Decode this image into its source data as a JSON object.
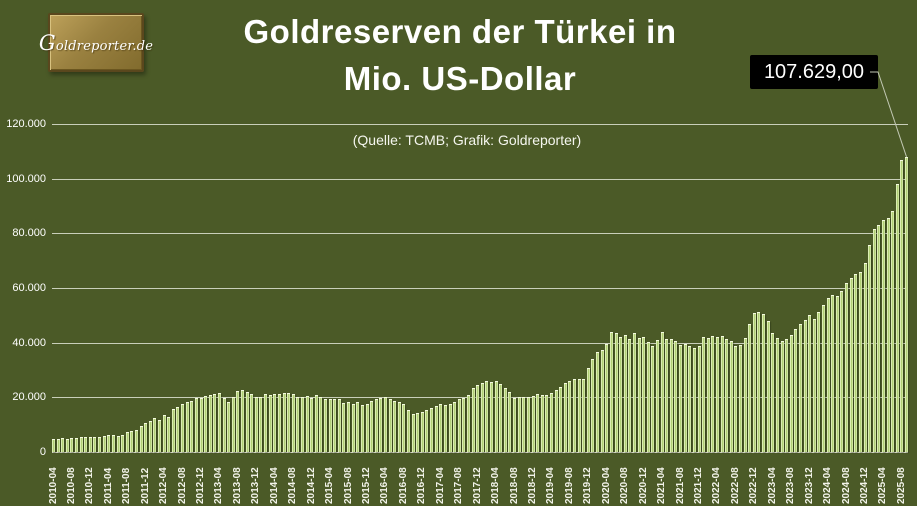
{
  "window": {
    "background": "#4b5a27"
  },
  "logo": {
    "text": "Goldreporter.de"
  },
  "title": {
    "line1": "Goldreserven der Türkei in",
    "line2": "Mio. US-Dollar"
  },
  "subtitle": "(Quelle: TCMB; Grafik: Goldreporter)",
  "callout": {
    "value_label": "107.629,00"
  },
  "colors": {
    "background": "#4b5a27",
    "bar_fill": "#c6df92",
    "bar_edge": "#eff7d2",
    "gridline": "#c9cfba",
    "text": "#ffffff",
    "callout_bg": "#000000",
    "logo_gold": "#9a8140",
    "leader_line": "#c2c8b3"
  },
  "chart_data": {
    "type": "bar",
    "title": "Goldreserven der Türkei in Mio. US-Dollar",
    "source_note": "(Quelle: TCMB; Grafik: Goldreporter)",
    "unit": "Mio. US-Dollar",
    "ylim": [
      0,
      120000
    ],
    "grid": true,
    "y_ticks": [
      {
        "value": 120000,
        "label": "120.000"
      },
      {
        "value": 100000,
        "label": "100.000"
      },
      {
        "value": 80000,
        "label": "80.000"
      },
      {
        "value": 60000,
        "label": "60.000"
      },
      {
        "value": 40000,
        "label": "40.000"
      },
      {
        "value": 20000,
        "label": "20.000"
      },
      {
        "value": 0,
        "label": "0"
      }
    ],
    "x_start_month": "2010-04",
    "x_tick_every_n_bars": 4,
    "x_tick_labels": [
      "2010-04",
      "2010-08",
      "2010-12",
      "2011-04",
      "2011-08",
      "2011-12",
      "2012-04",
      "2012-08",
      "2012-12",
      "2013-04",
      "2013-08",
      "2013-12",
      "2014-04",
      "2014-08",
      "2014-12",
      "2015-04",
      "2015-08",
      "2015-12",
      "2016-04",
      "2016-08",
      "2016-12",
      "2017-04",
      "2017-08",
      "2017-12",
      "2018-04",
      "2018-08",
      "2018-12",
      "2019-04",
      "2019-08",
      "2019-12",
      "2020-04",
      "2020-08",
      "2020-12",
      "2021-04",
      "2021-08",
      "2021-12",
      "2022-04",
      "2022-08",
      "2022-12",
      "2023-04",
      "2023-08",
      "2023-12",
      "2024-04",
      "2024-08",
      "2024-12",
      "2025-04",
      "2025-08"
    ],
    "values": [
      4300,
      4500,
      4600,
      4400,
      4600,
      4900,
      5000,
      5100,
      5300,
      5000,
      5200,
      5400,
      5700,
      5700,
      5600,
      6000,
      6900,
      7200,
      7800,
      9200,
      10100,
      11100,
      12200,
      11300,
      13000,
      12600,
      15400,
      16200,
      17100,
      17800,
      18300,
      19300,
      19500,
      20300,
      20500,
      20800,
      21100,
      19500,
      17800,
      19900,
      22000,
      22300,
      21500,
      20900,
      19900,
      19900,
      20900,
      20600,
      20800,
      20900,
      21100,
      21200,
      20700,
      19600,
      19900,
      20000,
      19300,
      20400,
      19600,
      19000,
      19200,
      19100,
      18900,
      17700,
      17900,
      17300,
      17900,
      16800,
      17200,
      18400,
      19200,
      19500,
      19800,
      18900,
      18400,
      17900,
      17300,
      14900,
      13600,
      13900,
      14400,
      14900,
      15800,
      16400,
      17100,
      16900,
      17300,
      17900,
      18900,
      19500,
      20500,
      23200,
      24000,
      25000,
      25500,
      25300,
      25600,
      24400,
      23000,
      21700,
      19300,
      19900,
      19600,
      19700,
      20200,
      20900,
      20400,
      20400,
      21300,
      22200,
      23500,
      24700,
      25500,
      26500,
      26200,
      26500,
      30400,
      33800,
      36400,
      36800,
      39200,
      43500,
      43300,
      41700,
      42300,
      41000,
      43000,
      41500,
      41700,
      39900,
      38300,
      40700,
      43700,
      41100,
      40800,
      40200,
      38900,
      39300,
      38300,
      37700,
      38300,
      41700,
      41300,
      42000,
      41700,
      42000,
      41100,
      40100,
      38400,
      38600,
      41300,
      46500,
      50500,
      51000,
      50200,
      47500,
      43000,
      41200,
      40400,
      40900,
      42400,
      44600,
      46400,
      48000,
      49700,
      48300,
      50700,
      53400,
      56000,
      57000,
      56800,
      58600,
      61600,
      63300,
      64700,
      65500,
      68800,
      75400,
      81200,
      82600,
      84400,
      85400,
      87800,
      97800,
      106300,
      107629
    ],
    "last_value": 107629,
    "last_value_label": "107.629,00",
    "legend": "none"
  }
}
